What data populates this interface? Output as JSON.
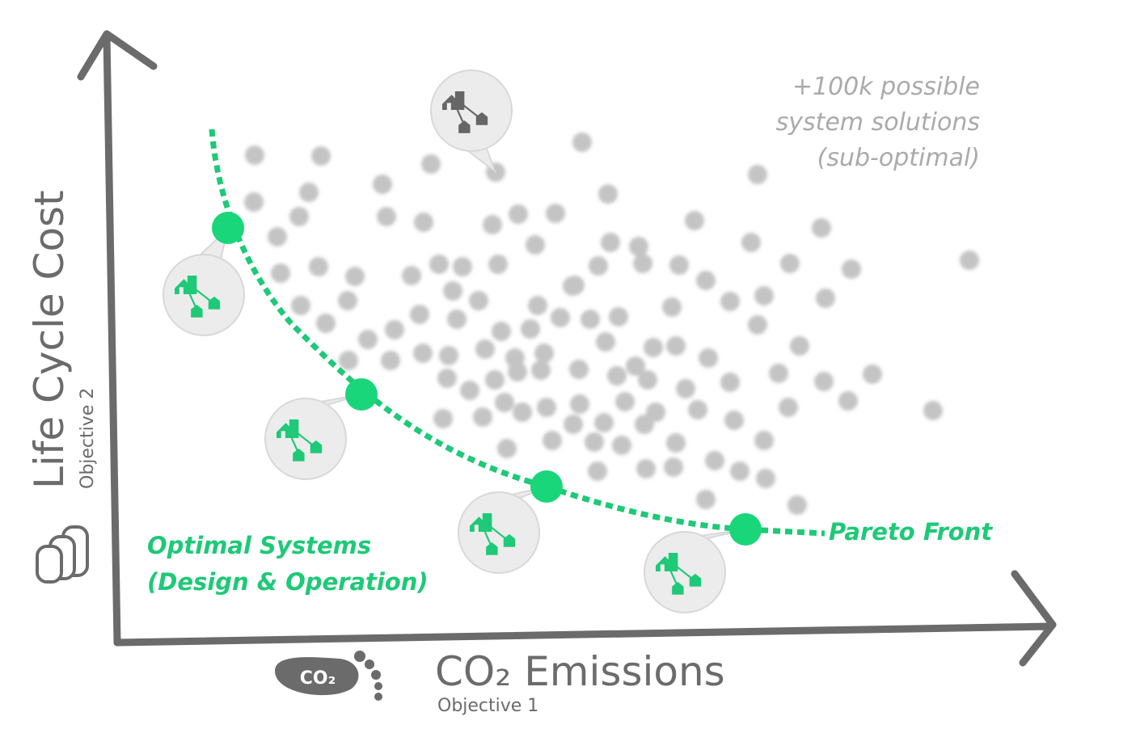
{
  "y_axis": {
    "label": "Life Cycle Cost",
    "sublabel": "Objective 2"
  },
  "x_axis": {
    "label": "CO₂ Emissions",
    "sublabel": "Objective 1",
    "icon_text": "CO₂"
  },
  "annotations": {
    "suboptimal": [
      "+100k possible",
      "system solutions",
      "(sub-optimal)"
    ],
    "optimal": [
      "Optimal Systems",
      "(Design & Operation)"
    ],
    "pareto": "Pareto Front"
  }
}
